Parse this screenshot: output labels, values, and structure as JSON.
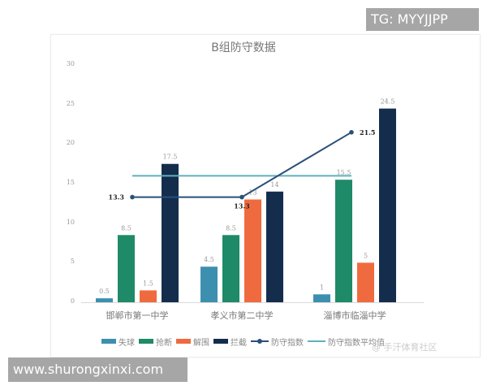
{
  "watermarks": {
    "top_right": "TG: MYYJJPP",
    "bottom_left": "www.shurongxinxi.com",
    "weibo": "@ 手汗体育社区"
  },
  "colors": {
    "失球": "#3d8fb0",
    "抢断": "#1e8a68",
    "解围": "#f06a3f",
    "拦截": "#142d4c",
    "防守指数": "#2a5078",
    "防守指数平均值": "#5fb0be"
  },
  "chart_data": {
    "type": "bar",
    "title": "B组防守数据",
    "xlabel": "",
    "ylabel": "",
    "ylim": [
      0,
      30
    ],
    "yticks": [
      0,
      5,
      10,
      15,
      20,
      25,
      30
    ],
    "grid": false,
    "legend_position": "bottom",
    "categories": [
      "邯郸市第一中学",
      "孝义市第二中学",
      "淄博市临淄中学"
    ],
    "series": [
      {
        "name": "失球",
        "type": "bar",
        "values": [
          0.5,
          4.5,
          1
        ]
      },
      {
        "name": "抢断",
        "type": "bar",
        "values": [
          8.5,
          8.5,
          15.5
        ]
      },
      {
        "name": "解围",
        "type": "bar",
        "values": [
          1.5,
          13,
          5
        ]
      },
      {
        "name": "拦截",
        "type": "bar",
        "values": [
          17.5,
          14,
          24.5
        ]
      },
      {
        "name": "防守指数",
        "type": "line",
        "values": [
          13.3,
          13.3,
          21.5
        ]
      },
      {
        "name": "防守指数平均值",
        "type": "line",
        "values": [
          16,
          16,
          16
        ]
      }
    ],
    "legend": [
      "失球",
      "抢断",
      "解围",
      "拦截",
      "防守指数",
      "防守指数平均值"
    ]
  }
}
